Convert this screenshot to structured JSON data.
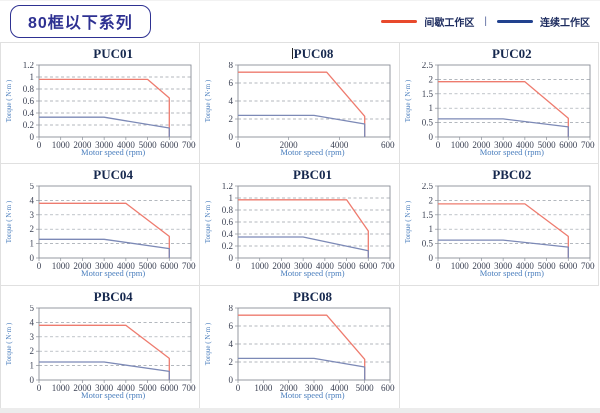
{
  "header": {
    "title": "80框以下系列",
    "legend": [
      {
        "label": "间歇工作区",
        "color": "#e8492c"
      },
      {
        "label": "连续工作区",
        "color": "#21418e"
      }
    ],
    "legend_separator": "|"
  },
  "colors": {
    "intermittent_line": "#ee7b6e",
    "continuous_line": "#7c89b6",
    "grid_dash": "#9aa0a8",
    "axis_frame": "#8a8f98",
    "tick_text": "#3c4254",
    "axis_label": "#4a7ebd",
    "chart_title": "#16284e",
    "badge": "#2e3192",
    "cell_border": "#e0e0e0"
  },
  "chart_data": [
    {
      "type": "line",
      "title": "PUC01",
      "xlabel": "Motor speed (rpm)",
      "ylabel": "Torque ( N·m )",
      "xlim": [
        0,
        7000
      ],
      "xstep": 1000,
      "ylim": [
        0,
        1.2
      ],
      "ystep": 0.2,
      "grid": "dashed-horizontal",
      "series": [
        {
          "name": "间歇工作区",
          "color": "#ee7b6e",
          "points": [
            [
              0,
              0.96
            ],
            [
              5000,
              0.96
            ],
            [
              6000,
              0.65
            ],
            [
              6000,
              0
            ]
          ]
        },
        {
          "name": "连续工作区",
          "color": "#7c89b6",
          "points": [
            [
              0,
              0.33
            ],
            [
              3000,
              0.33
            ],
            [
              6000,
              0.15
            ],
            [
              6000,
              0
            ]
          ]
        }
      ]
    },
    {
      "type": "line",
      "title": "PUC08",
      "xlabel": "Motor speed (rpm)",
      "ylabel": "Torque ( N·m )",
      "xlim": [
        0,
        6000
      ],
      "xstep": 2000,
      "ylim": [
        0,
        8
      ],
      "ystep": 2,
      "grid": "dashed-horizontal",
      "series": [
        {
          "name": "间歇工作区",
          "color": "#ee7b6e",
          "points": [
            [
              0,
              7.2
            ],
            [
              3500,
              7.2
            ],
            [
              5000,
              2.3
            ],
            [
              5000,
              0
            ]
          ]
        },
        {
          "name": "连续工作区",
          "color": "#7c89b6",
          "points": [
            [
              0,
              2.4
            ],
            [
              3000,
              2.4
            ],
            [
              5000,
              1.45
            ],
            [
              5000,
              0
            ]
          ]
        }
      ]
    },
    {
      "type": "line",
      "title": "PUC02",
      "xlabel": "Motor speed (rpm)",
      "ylabel": "Torque ( N·m )",
      "xlim": [
        0,
        7000
      ],
      "xstep": 1000,
      "ylim": [
        0,
        2.5
      ],
      "ystep": 0.5,
      "grid": "dashed-horizontal",
      "series": [
        {
          "name": "间歇工作区",
          "color": "#ee7b6e",
          "points": [
            [
              0,
              1.92
            ],
            [
              4000,
              1.92
            ],
            [
              6000,
              0.65
            ],
            [
              6000,
              0
            ]
          ]
        },
        {
          "name": "连续工作区",
          "color": "#7c89b6",
          "points": [
            [
              0,
              0.63
            ],
            [
              3000,
              0.63
            ],
            [
              6000,
              0.35
            ],
            [
              6000,
              0
            ]
          ]
        }
      ]
    },
    {
      "type": "line",
      "title": "PUC04",
      "xlabel": "Motor speed (rpm)",
      "ylabel": "Torque ( N·m )",
      "xlim": [
        0,
        7000
      ],
      "xstep": 1000,
      "ylim": [
        0,
        5
      ],
      "ystep": 1,
      "grid": "dashed-horizontal",
      "series": [
        {
          "name": "间歇工作区",
          "color": "#ee7b6e",
          "points": [
            [
              0,
              3.8
            ],
            [
              4000,
              3.8
            ],
            [
              6000,
              1.5
            ],
            [
              6000,
              0
            ]
          ]
        },
        {
          "name": "连续工作区",
          "color": "#7c89b6",
          "points": [
            [
              0,
              1.3
            ],
            [
              3000,
              1.3
            ],
            [
              6000,
              0.65
            ],
            [
              6000,
              0
            ]
          ]
        }
      ]
    },
    {
      "type": "line",
      "title": "PBC01",
      "xlabel": "Motor speed (rpm)",
      "ylabel": "Torque ( N·m )",
      "xlim": [
        0,
        7000
      ],
      "xstep": 1000,
      "ylim": [
        0,
        1.2
      ],
      "ystep": 0.2,
      "grid": "dashed-horizontal",
      "series": [
        {
          "name": "间歇工作区",
          "color": "#ee7b6e",
          "points": [
            [
              0,
              0.97
            ],
            [
              5000,
              0.97
            ],
            [
              6000,
              0.45
            ],
            [
              6000,
              0
            ]
          ]
        },
        {
          "name": "连续工作区",
          "color": "#7c89b6",
          "points": [
            [
              0,
              0.35
            ],
            [
              3000,
              0.35
            ],
            [
              6000,
              0.12
            ],
            [
              6000,
              0
            ]
          ]
        }
      ]
    },
    {
      "type": "line",
      "title": "PBC02",
      "xlabel": "Motor speed (rpm)",
      "ylabel": "Torque ( N·m )",
      "xlim": [
        0,
        7000
      ],
      "xstep": 1000,
      "ylim": [
        0,
        2.5
      ],
      "ystep": 0.5,
      "grid": "dashed-horizontal",
      "series": [
        {
          "name": "间歇工作区",
          "color": "#ee7b6e",
          "points": [
            [
              0,
              1.88
            ],
            [
              4000,
              1.88
            ],
            [
              6000,
              0.75
            ],
            [
              6000,
              0
            ]
          ]
        },
        {
          "name": "连续工作区",
          "color": "#7c89b6",
          "points": [
            [
              0,
              0.62
            ],
            [
              3000,
              0.62
            ],
            [
              6000,
              0.38
            ],
            [
              6000,
              0
            ]
          ]
        }
      ]
    },
    {
      "type": "line",
      "title": "PBC04",
      "xlabel": "Motor speed (rpm)",
      "ylabel": "Torque ( N·m )",
      "xlim": [
        0,
        7000
      ],
      "xstep": 1000,
      "ylim": [
        0,
        5
      ],
      "ystep": 1,
      "grid": "dashed-horizontal",
      "series": [
        {
          "name": "间歇工作区",
          "color": "#ee7b6e",
          "points": [
            [
              0,
              3.8
            ],
            [
              4000,
              3.8
            ],
            [
              6000,
              1.5
            ],
            [
              6000,
              0
            ]
          ]
        },
        {
          "name": "连续工作区",
          "color": "#7c89b6",
          "points": [
            [
              0,
              1.25
            ],
            [
              3000,
              1.25
            ],
            [
              6000,
              0.6
            ],
            [
              6000,
              0
            ]
          ]
        }
      ]
    },
    {
      "type": "line",
      "title": "PBC08",
      "xlabel": "Motor speed (rpm)",
      "ylabel": "Torque ( N·m )",
      "xlim": [
        0,
        6000
      ],
      "xstep": 1000,
      "ylim": [
        0,
        8
      ],
      "ystep": 2,
      "grid": "dashed-horizontal",
      "series": [
        {
          "name": "间歇工作区",
          "color": "#ee7b6e",
          "points": [
            [
              0,
              7.2
            ],
            [
              3500,
              7.2
            ],
            [
              5000,
              2.3
            ],
            [
              5000,
              0
            ]
          ]
        },
        {
          "name": "连续工作区",
          "color": "#7c89b6",
          "points": [
            [
              0,
              2.4
            ],
            [
              3000,
              2.4
            ],
            [
              5000,
              1.45
            ],
            [
              5000,
              0
            ]
          ]
        }
      ]
    }
  ]
}
